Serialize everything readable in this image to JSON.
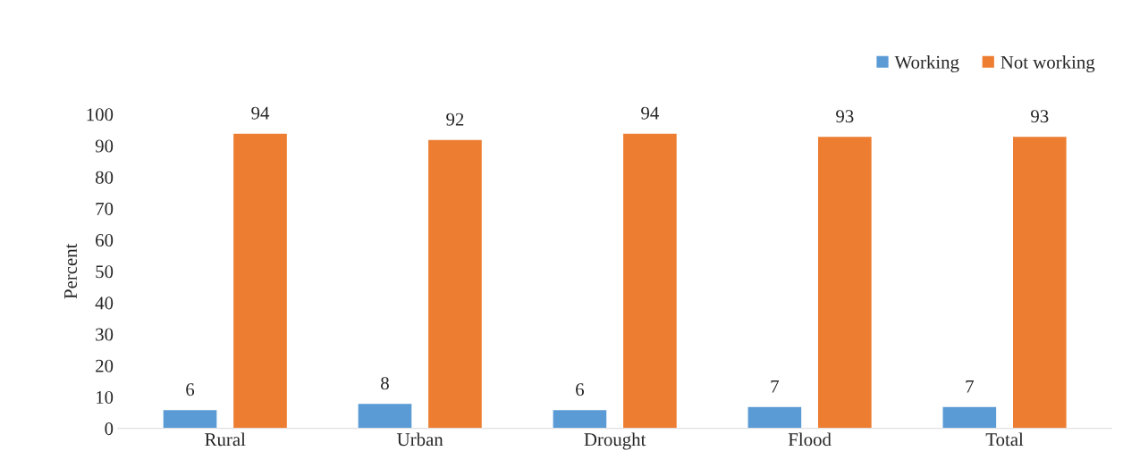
{
  "chart_data": {
    "type": "bar",
    "ylabel": "Percent",
    "categories": [
      "Rural",
      "Urban",
      "Drought",
      "Flood",
      "Total"
    ],
    "series": [
      {
        "name": "Working",
        "color": "#5b9bd5",
        "values": [
          6,
          8,
          6,
          7,
          7
        ]
      },
      {
        "name": "Not working",
        "color": "#ed7d31",
        "values": [
          94,
          92,
          94,
          93,
          93
        ]
      }
    ],
    "ylim": [
      0,
      100
    ],
    "yticks": [
      0,
      10,
      20,
      30,
      40,
      50,
      60,
      70,
      80,
      90,
      100
    ],
    "data_labels": true,
    "grid": false,
    "legend": "top right"
  }
}
